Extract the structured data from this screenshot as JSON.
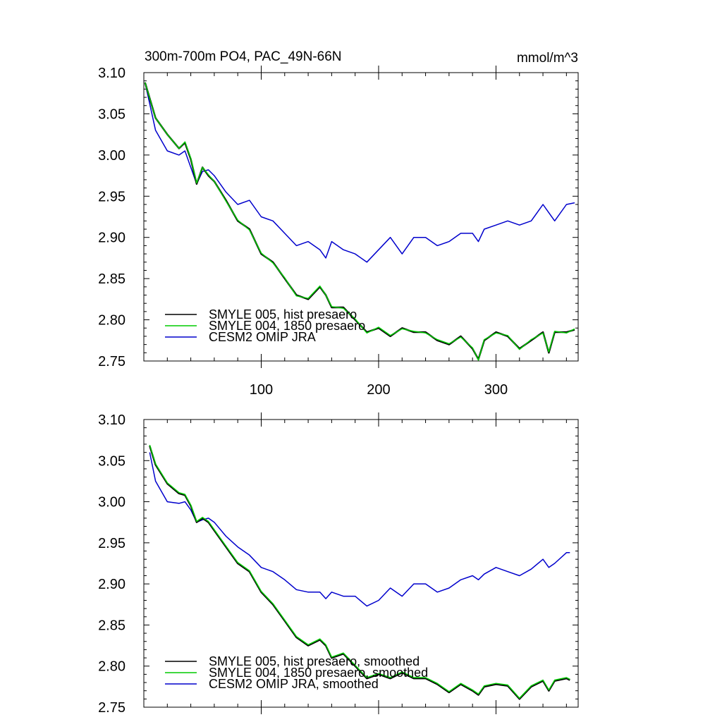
{
  "chart_data": [
    {
      "type": "line",
      "title": "300m-700m PO4, PAC_49N-66N",
      "units": "mmol/m^3",
      "xlim": [
        0,
        370
      ],
      "ylim": [
        2.75,
        3.1
      ],
      "yticks": [
        "3.10",
        "3.05",
        "3.00",
        "2.95",
        "2.90",
        "2.85",
        "2.80",
        "2.75"
      ],
      "xticks": [
        "100",
        "200",
        "300"
      ],
      "x": [
        1,
        10,
        20,
        30,
        35,
        40,
        45,
        50,
        55,
        60,
        70,
        80,
        90,
        100,
        110,
        120,
        130,
        140,
        150,
        155,
        160,
        170,
        180,
        190,
        200,
        210,
        220,
        230,
        240,
        250,
        260,
        270,
        280,
        285,
        290,
        300,
        310,
        320,
        330,
        340,
        345,
        350,
        360,
        367
      ],
      "series": [
        {
          "name": "SMYLE 005, hist presaero",
          "color": "#000000",
          "values": [
            3.088,
            3.045,
            3.025,
            3.008,
            3.015,
            2.995,
            2.965,
            2.985,
            2.975,
            2.968,
            2.945,
            2.92,
            2.91,
            2.88,
            2.87,
            2.85,
            2.83,
            2.825,
            2.84,
            2.83,
            2.815,
            2.815,
            2.8,
            2.785,
            2.79,
            2.78,
            2.79,
            2.785,
            2.785,
            2.775,
            2.77,
            2.78,
            2.765,
            2.752,
            2.775,
            2.785,
            2.78,
            2.765,
            2.775,
            2.785,
            2.76,
            2.785,
            2.785,
            2.788
          ]
        },
        {
          "name": "SMYLE 004, 1850 presaero",
          "color": "#00cc00",
          "values": [
            3.088,
            3.045,
            3.025,
            3.008,
            3.016,
            2.996,
            2.966,
            2.985,
            2.976,
            2.968,
            2.944,
            2.921,
            2.909,
            2.881,
            2.869,
            2.851,
            2.829,
            2.826,
            2.841,
            2.83,
            2.816,
            2.814,
            2.801,
            2.784,
            2.791,
            2.781,
            2.789,
            2.786,
            2.784,
            2.776,
            2.771,
            2.779,
            2.766,
            2.751,
            2.776,
            2.784,
            2.781,
            2.764,
            2.776,
            2.784,
            2.761,
            2.786,
            2.784,
            2.789
          ]
        },
        {
          "name": "CESM2 OMIP JRA",
          "color": "#0000cc",
          "values": [
            3.088,
            3.03,
            3.005,
            3.0,
            3.005,
            2.985,
            2.965,
            2.98,
            2.982,
            2.975,
            2.955,
            2.94,
            2.945,
            2.925,
            2.92,
            2.905,
            2.89,
            2.895,
            2.885,
            2.875,
            2.895,
            2.885,
            2.88,
            2.87,
            2.885,
            2.9,
            2.88,
            2.9,
            2.9,
            2.89,
            2.895,
            2.905,
            2.905,
            2.895,
            2.91,
            2.915,
            2.92,
            2.915,
            2.92,
            2.94,
            2.93,
            2.92,
            2.94,
            2.942
          ]
        }
      ]
    },
    {
      "type": "line",
      "xlim": [
        0,
        370
      ],
      "ylim": [
        2.75,
        3.1
      ],
      "yticks": [
        "3.10",
        "3.05",
        "3.00",
        "2.95",
        "2.90",
        "2.85",
        "2.80",
        "2.75"
      ],
      "x": [
        5,
        10,
        20,
        30,
        35,
        40,
        45,
        50,
        55,
        60,
        70,
        80,
        90,
        100,
        110,
        120,
        130,
        140,
        150,
        155,
        160,
        170,
        180,
        190,
        200,
        210,
        220,
        230,
        240,
        250,
        260,
        270,
        280,
        285,
        290,
        300,
        310,
        320,
        330,
        340,
        345,
        350,
        360,
        363
      ],
      "series": [
        {
          "name": "SMYLE 005, hist presaero, smoothed",
          "color": "#000000",
          "values": [
            3.068,
            3.045,
            3.022,
            3.01,
            3.008,
            2.995,
            2.975,
            2.98,
            2.975,
            2.965,
            2.945,
            2.925,
            2.915,
            2.89,
            2.875,
            2.855,
            2.835,
            2.825,
            2.832,
            2.825,
            2.81,
            2.815,
            2.8,
            2.785,
            2.79,
            2.785,
            2.792,
            2.785,
            2.785,
            2.778,
            2.768,
            2.778,
            2.77,
            2.765,
            2.775,
            2.778,
            2.776,
            2.76,
            2.775,
            2.782,
            2.77,
            2.782,
            2.785,
            2.783
          ]
        },
        {
          "name": "SMYLE 004, 1850 presaero, smoothed",
          "color": "#00cc00",
          "values": [
            3.069,
            3.046,
            3.023,
            3.011,
            3.009,
            2.996,
            2.976,
            2.981,
            2.976,
            2.966,
            2.946,
            2.926,
            2.916,
            2.891,
            2.876,
            2.856,
            2.836,
            2.826,
            2.833,
            2.826,
            2.811,
            2.816,
            2.801,
            2.786,
            2.791,
            2.786,
            2.793,
            2.786,
            2.786,
            2.779,
            2.769,
            2.779,
            2.771,
            2.766,
            2.776,
            2.779,
            2.777,
            2.761,
            2.776,
            2.783,
            2.771,
            2.783,
            2.786,
            2.784
          ]
        },
        {
          "name": "CESM2 OMIP JRA, smoothed",
          "color": "#0000cc",
          "values": [
            3.06,
            3.025,
            3.0,
            2.998,
            3.0,
            2.99,
            2.975,
            2.978,
            2.98,
            2.975,
            2.958,
            2.945,
            2.935,
            2.92,
            2.915,
            2.905,
            2.893,
            2.89,
            2.89,
            2.882,
            2.89,
            2.885,
            2.885,
            2.873,
            2.88,
            2.895,
            2.885,
            2.9,
            2.9,
            2.89,
            2.895,
            2.905,
            2.91,
            2.905,
            2.912,
            2.92,
            2.915,
            2.91,
            2.918,
            2.93,
            2.92,
            2.925,
            2.938,
            2.938
          ]
        }
      ]
    }
  ]
}
